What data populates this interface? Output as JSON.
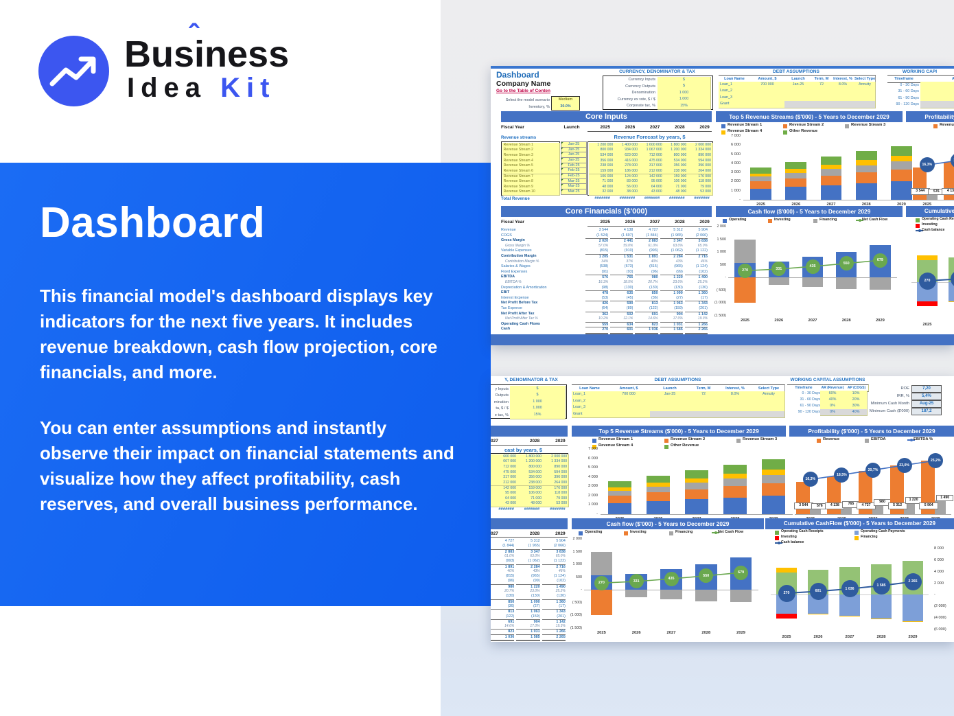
{
  "logo": {
    "word1_pre": "Bus",
    "word1_i": "i",
    "word1_hat": "ˆ",
    "word1_post": "ness",
    "word2": "Idea",
    "word3": "Kit"
  },
  "panel": {
    "title": "Dashboard",
    "para1": "This financial model's dashboard displays key indicators for the next five years. It includes revenue breakdown, cash flow projection, core financials, and more.",
    "para2": "You can enter assumptions and instantly observe their impact on financial statements and visualize how they affect profitability, cash reserves, and overall business performance."
  },
  "colors": {
    "panel_blue": "#1264ef",
    "banner": "#4472c4",
    "head_blue": "#1f6fc0",
    "label_gray": "#44546a",
    "cell_yellow": "#ffffa2",
    "cell_gray": "#d9d9d9",
    "val_blue": "#2e74b5",
    "link_red": "#c00045",
    "bar_blue": "#4472c4",
    "bar_orange": "#ed7d31",
    "bar_gray": "#a5a5a5",
    "bar_yellow": "#ffc000",
    "bar_green": "#70ad47",
    "bar_red": "#fe0000",
    "cum_blue": "#7d9fd8",
    "bubble_green": "#6aa84f",
    "bubble_navy": "#2f5b9e",
    "line_green": "#6aa84f",
    "line_blue": "#4472c4",
    "line_navy": "#2f5b9e",
    "stream_olive": "#7b7b27",
    "scenario_text": "#7b7b27",
    "logo_blue": "#3c56f0"
  },
  "sheet": {
    "title": "Dashboard",
    "company": "Company Name",
    "toc_link": "Go to the Table of Conten",
    "scenario_label": "Select the model scenario",
    "scenario_value": "Medium",
    "inventory_label": "Inventory, %",
    "inventory_value": "30.0%",
    "currency": {
      "heading": "CURRENCY, DENOMINATOR & TAX",
      "heading_cut": "Y, DENOMINATOR & TAX",
      "labels": [
        "Currency Inputs",
        "Currency Outputs",
        "Denomination",
        "Currency ex rate, $ / $",
        "Corporate tax, %"
      ],
      "labels_cut": [
        "y Inputs",
        "Outputs",
        "mination",
        "ta, $ / $",
        "e tax, %"
      ],
      "values": [
        "$",
        "$",
        "1 000",
        "1.000",
        "15%"
      ]
    },
    "debt": {
      "heading": "DEBT ASSUMPTIONS",
      "headers": [
        "Loan Name",
        "Amount, $",
        "Launch",
        "Term, M",
        "Interest, %",
        "Select Type"
      ],
      "rows": [
        [
          "Loan_1",
          "700 000",
          "Jan-25",
          "72",
          "8.0%",
          "Annuity"
        ],
        [
          "Loan_2",
          "",
          "",
          "",
          "",
          ""
        ],
        [
          "Loan_3",
          "",
          "",
          "",
          "",
          ""
        ],
        [
          "Grant",
          "",
          "",
          "",
          "",
          ""
        ]
      ]
    },
    "working": {
      "heading": "WORKING CAPITAL ASSUMPTIONS",
      "heading_cut": "WORKING CAPI",
      "headers": [
        "Timeframe",
        "AR (Revenue)",
        "AP (COGS)"
      ],
      "headers_cut": [
        "Timeframe",
        "AR"
      ],
      "rows": [
        [
          "0 - 30 Days",
          "60%",
          "10%"
        ],
        [
          "31 - 60 Days",
          "40%",
          "20%"
        ],
        [
          "61 - 90 Days",
          "0%",
          "30%"
        ],
        [
          "90 - 120 Days",
          "0%",
          "40%"
        ]
      ]
    },
    "kpis": {
      "labels": [
        "ROE",
        "IRR, %",
        "Minimum Cash Month",
        "Minimum Cash ($'000)"
      ],
      "values": [
        "7,20",
        "5,4%",
        "Aug-25",
        "187,2"
      ]
    },
    "core_inputs": {
      "banner": "Core Inputs",
      "fiscal_label": "Fiscal Year",
      "launch_label": "Launch",
      "years": [
        "2025",
        "2026",
        "2027",
        "2028",
        "2029"
      ],
      "years_cut": [
        "027",
        "2028",
        "2029"
      ]
    },
    "forecast": {
      "streams_label": "Revenue streams",
      "heading": "Revenue Forecast by years, $",
      "heading_cut": "cast by years, $",
      "streams": [
        "Revenue Stream 1",
        "Revenue Stream 2",
        "Revenue Stream 3",
        "Revenue Stream 4",
        "Revenue Stream 5",
        "Revenue Stream 6",
        "Revenue Stream 7",
        "Revenue Stream 8",
        "Revenue Stream 9",
        "Revenue Stream 10"
      ],
      "launches": [
        "Jan-25",
        "Jan-25",
        "Jan-25",
        "Jan-25",
        "Feb-25",
        "Feb-25",
        "Feb-25",
        "Mar-25",
        "Mar-25",
        "Mar-25"
      ],
      "values": [
        [
          "1 200 000",
          "1 400 000",
          "1 600 000",
          "1 800 000",
          "2 000 000"
        ],
        [
          "800 000",
          "934 000",
          "1 067 000",
          "1 200 000",
          "1 334 000"
        ],
        [
          "534 000",
          "623 000",
          "712 000",
          "800 000",
          "890 000"
        ],
        [
          "356 000",
          "416 000",
          "475 000",
          "534 000",
          "594 000"
        ],
        [
          "238 000",
          "278 000",
          "317 000",
          "356 000",
          "396 000"
        ],
        [
          "159 000",
          "186 000",
          "212 000",
          "238 000",
          "264 000"
        ],
        [
          "106 000",
          "124 000",
          "142 000",
          "159 000",
          "176 000"
        ],
        [
          "71 000",
          "83 000",
          "95 000",
          "106 000",
          "118 000"
        ],
        [
          "48 000",
          "56 000",
          "64 000",
          "71 000",
          "79 000"
        ],
        [
          "32 000",
          "38 000",
          "43 000",
          "48 000",
          "53 000"
        ]
      ],
      "values_cut": [
        [
          "600 000",
          "1 800 000",
          "2 000 000"
        ],
        [
          "067 000",
          "1 200 000",
          "1 334 000"
        ],
        [
          "712 000",
          "800 000",
          "890 000"
        ],
        [
          "475 000",
          "534 000",
          "594 000"
        ],
        [
          "317 000",
          "356 000",
          "396 000"
        ],
        [
          "212 000",
          "238 000",
          "264 000"
        ],
        [
          "142 000",
          "159 000",
          "176 000"
        ],
        [
          "95 000",
          "106 000",
          "118 000"
        ],
        [
          "64 000",
          "71 000",
          "79 000"
        ],
        [
          "43 000",
          "48 000",
          "53 000"
        ]
      ],
      "total_label": "Total Revenue",
      "hash": "#######"
    },
    "core_fin": {
      "banner": "Core Financials ($'000)",
      "fiscal_label": "Fiscal Year",
      "rows": [
        {
          "label": "Revenue",
          "style": "n",
          "values": [
            "3 544",
            "4 138",
            "4 727",
            "5 312",
            "5 904"
          ]
        },
        {
          "label": "COGS",
          "style": "n",
          "values": [
            "(1 524)",
            "(1 697)",
            "(1 844)",
            "(1 965)",
            "(2 066)"
          ]
        },
        {
          "label": "Gross Margin",
          "style": "b",
          "values": [
            "2 020",
            "2 441",
            "2 883",
            "3 347",
            "3 838"
          ]
        },
        {
          "label": "Gross Margin %",
          "style": "i",
          "values": [
            "57.0%",
            "59.0%",
            "61.0%",
            "63.0%",
            "65.0%"
          ]
        },
        {
          "label": "Variable Expenses",
          "style": "n",
          "values": [
            "(815)",
            "(910)",
            "(993)",
            "(1 062)",
            "(1 122)"
          ]
        },
        {
          "label": "Contribution Margin",
          "style": "b",
          "values": [
            "1 205",
            "1 531",
            "1 891",
            "2 284",
            "2 716"
          ]
        },
        {
          "label": "Contribution Margin %",
          "style": "i",
          "values": [
            "34%",
            "37%",
            "40%",
            "43%",
            "46%"
          ]
        },
        {
          "label": "Salaries & Wages",
          "style": "n",
          "values": [
            "(538)",
            "(673)",
            "(815)",
            "(965)",
            "(1 124)"
          ]
        },
        {
          "label": "Fixed Expenses",
          "style": "n",
          "values": [
            "(91)",
            "(93)",
            "(96)",
            "(99)",
            "(102)"
          ]
        },
        {
          "label": "EBITDA",
          "style": "d",
          "values": [
            "576",
            "765",
            "980",
            "1 220",
            "1 490"
          ]
        },
        {
          "label": "EBITDA %",
          "style": "i",
          "values": [
            "16.3%",
            "18.5%",
            "20.7%",
            "23.0%",
            "25.2%"
          ]
        },
        {
          "label": "Depreciation & Amortization",
          "style": "n",
          "values": [
            "(98)",
            "(130)",
            "(130)",
            "(130)",
            "(130)"
          ]
        },
        {
          "label": "EBIT",
          "style": "b",
          "values": [
            "478",
            "635",
            "850",
            "1 090",
            "1 360"
          ]
        },
        {
          "label": "Interest Expense",
          "style": "n",
          "values": [
            "(53)",
            "(45)",
            "(36)",
            "(27)",
            "(17)"
          ]
        },
        {
          "label": "Net Profit Before Tax",
          "style": "b",
          "values": [
            "426",
            "590",
            "813",
            "1 063",
            "1 343"
          ]
        },
        {
          "label": "Tax Expense",
          "style": "n",
          "values": [
            "(64)",
            "(89)",
            "(122)",
            "(159)",
            "(201)"
          ]
        },
        {
          "label": "Net Profit After Tax",
          "style": "d",
          "values": [
            "362",
            "502",
            "691",
            "904",
            "1 142"
          ]
        },
        {
          "label": "Net Profit After Tax %",
          "style": "i",
          "values": [
            "10.2%",
            "12.1%",
            "14.6%",
            "17.0%",
            "19.3%"
          ]
        },
        {
          "label": "Operating Cash Flows",
          "style": "b",
          "values": [
            "559",
            "634",
            "823",
            "1 031",
            "1 266"
          ]
        },
        {
          "label": "Cash",
          "style": "d",
          "values": [
            "270",
            "601",
            "1 036",
            "1 585",
            "2 265"
          ]
        }
      ]
    }
  },
  "chart_data": {
    "top5": {
      "type": "bar",
      "stacked": true,
      "title": "Top 5 Revenue Streams ($'000) - 5 Years to December 2029",
      "categories": [
        "2025",
        "2026",
        "2027",
        "2028",
        "2029"
      ],
      "yticks": [
        "7 000",
        "6 000",
        "5 000",
        "4 000",
        "3 000",
        "2 000",
        "1 000",
        "-"
      ],
      "ymax": 7000,
      "series": [
        {
          "name": "Revenue Stream 1",
          "color": "bar_blue",
          "values": [
            1200,
            1400,
            1600,
            1800,
            2000
          ]
        },
        {
          "name": "Revenue Stream 2",
          "color": "bar_orange",
          "values": [
            800,
            934,
            1067,
            1200,
            1334
          ]
        },
        {
          "name": "Revenue Stream 3",
          "color": "bar_gray",
          "values": [
            534,
            623,
            712,
            800,
            890
          ]
        },
        {
          "name": "Revenue Stream 4",
          "color": "bar_yellow",
          "values": [
            356,
            416,
            475,
            534,
            594
          ]
        },
        {
          "name": "Other Revenue",
          "color": "bar_green",
          "values": [
            654,
            765,
            873,
            978,
            1086
          ]
        }
      ]
    },
    "profit": {
      "type": "bar",
      "title": "Profitability ($'000) - 5 Years to December 2029",
      "categories": [
        "2025",
        "2026",
        "2027",
        "2028",
        "2029"
      ],
      "legend": [
        "Revenue",
        "EBITDA",
        "EBITDA %"
      ],
      "revenue": [
        3544,
        4138,
        4727,
        5312,
        5904
      ],
      "revenue_labels": [
        "3 544",
        "4 138",
        "4 727",
        "5 312",
        "5 904"
      ],
      "ebitda": [
        576,
        765,
        980,
        1220,
        1490
      ],
      "ebitda_labels": [
        "576",
        "765",
        "980",
        "1 220",
        "1 490"
      ],
      "pct": [
        16.3,
        18.5,
        20.7,
        23.0,
        25.2
      ],
      "pct_labels": [
        "16,3%",
        "18,5%",
        "20,7%",
        "23,0%",
        "25,2%"
      ],
      "ymax": 7000
    },
    "cashflow": {
      "type": "bar",
      "title": "Cash flow ($'000) - 5 Years to December 2029",
      "categories": [
        "2025",
        "2026",
        "2027",
        "2028",
        "2029"
      ],
      "legend": [
        "Operating",
        "Investing",
        "Financing",
        "Net Cash Flow"
      ],
      "yticks": [
        "2 000",
        "1 500",
        "1 000",
        "500",
        "-",
        "( 500)",
        "(1 000)",
        "(1 500)"
      ],
      "ymax": 2000,
      "ymin": -1500,
      "operating": [
        560,
        630,
        820,
        1010,
        1270
      ],
      "financing": [
        940,
        -300,
        -380,
        -450,
        -490
      ],
      "investing": [
        -1000,
        0,
        0,
        0,
        0
      ],
      "net": [
        270,
        331,
        435,
        550,
        679
      ],
      "net_labels": [
        "270",
        "331",
        "435",
        "550",
        "679"
      ]
    },
    "cumulative": {
      "type": "bar",
      "title": "Cumulative CashFlow ($'000) - 5 Years to December 2029",
      "categories": [
        "2025",
        "2026",
        "2027",
        "2028",
        "2029"
      ],
      "legend": [
        "Operating Cash Receipts",
        "Operating Cash Payments",
        "Investing",
        "Financing",
        "Cash balance"
      ],
      "yticks": [
        "8 000",
        "6 000",
        "4 000",
        "2 000",
        "-",
        "(2 000)",
        "(4 000)",
        "(6 000)"
      ],
      "ymax": 8000,
      "ymin": -6000,
      "receipts": [
        3900,
        4300,
        4750,
        5250,
        5850
      ],
      "financing_pos": [
        800,
        0,
        0,
        0,
        0
      ],
      "payments": [
        -3250,
        -3300,
        -3650,
        -4100,
        -4550
      ],
      "investing": [
        -900,
        0,
        0,
        0,
        0
      ],
      "financing_neg": [
        0,
        -80,
        -100,
        -120,
        -140
      ],
      "balance": [
        270,
        601,
        1036,
        1585,
        2265
      ],
      "balance_labels": [
        "270",
        "601",
        "1 036",
        "1 585",
        "2 265"
      ]
    }
  }
}
